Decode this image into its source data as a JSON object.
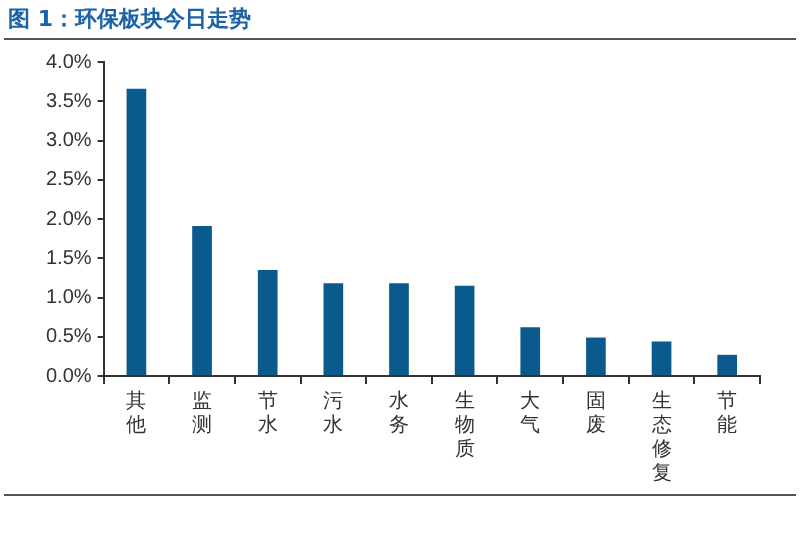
{
  "chart_data": {
    "type": "bar",
    "title": "图 1：环保板块今日走势",
    "categories": [
      "其他",
      "监测",
      "节水",
      "污水",
      "水务",
      "生物质",
      "大气",
      "固废",
      "生态修复",
      "节能"
    ],
    "values": [
      3.66,
      1.91,
      1.35,
      1.18,
      1.18,
      1.15,
      0.62,
      0.49,
      0.44,
      0.27
    ],
    "color": "#0b5a8e",
    "ylim": [
      0,
      4
    ],
    "yticks": [
      {
        "value": 0,
        "label": "0.0%"
      },
      {
        "value": 0.5,
        "label": "0.5%"
      },
      {
        "value": 1,
        "label": "1.0%"
      },
      {
        "value": 1.5,
        "label": "1.5%"
      },
      {
        "value": 2,
        "label": "2.0%"
      },
      {
        "value": 2.5,
        "label": "2.5%"
      },
      {
        "value": 3,
        "label": "3.0%"
      },
      {
        "value": 3.5,
        "label": "3.5%"
      },
      {
        "value": 4,
        "label": "4.0%"
      }
    ],
    "grid": false,
    "legend": false
  }
}
